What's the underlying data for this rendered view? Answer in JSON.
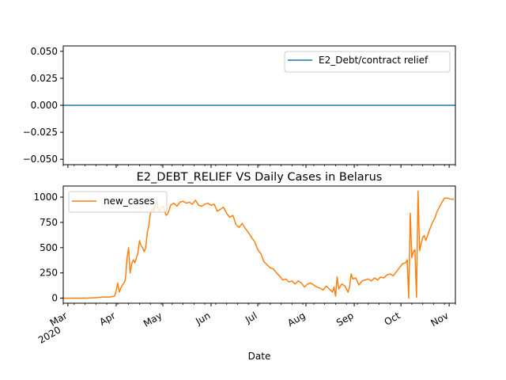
{
  "chart_data": [
    {
      "type": "line",
      "title": "",
      "xlabel": "",
      "ylabel": "",
      "ylim": [
        -0.055,
        0.055
      ],
      "yticks": [
        "0.050",
        "0.025",
        "0.000",
        "−0.025",
        "−0.050"
      ],
      "ytick_values": [
        0.05,
        0.025,
        0.0,
        -0.025,
        -0.05
      ],
      "grid": false,
      "legend_position": "upper right",
      "series": [
        {
          "name": "E2_Debt/contract relief",
          "color": "#1f77b4",
          "x": [
            "2020-02-27",
            "2020-11-05"
          ],
          "y": [
            0,
            0
          ]
        }
      ]
    },
    {
      "type": "line",
      "title": "E2_DEBT_RELIEF VS Daily Cases in Belarus",
      "xlabel": "Date",
      "ylabel": "",
      "ylim": [
        -50,
        1110
      ],
      "yticks": [
        "1000",
        "750",
        "500",
        "250",
        "0"
      ],
      "ytick_values": [
        1000,
        750,
        500,
        250,
        0
      ],
      "xlim": [
        "2020-02-27",
        "2020-11-05"
      ],
      "xticks": [
        {
          "date": "2020-03-01",
          "label": "Mar",
          "sublabel": "2020"
        },
        {
          "date": "2020-04-01",
          "label": "Apr",
          "sublabel": ""
        },
        {
          "date": "2020-05-01",
          "label": "May",
          "sublabel": ""
        },
        {
          "date": "2020-06-01",
          "label": "Jun",
          "sublabel": ""
        },
        {
          "date": "2020-07-01",
          "label": "Jul",
          "sublabel": ""
        },
        {
          "date": "2020-08-01",
          "label": "Aug",
          "sublabel": ""
        },
        {
          "date": "2020-09-01",
          "label": "Sep",
          "sublabel": ""
        },
        {
          "date": "2020-10-01",
          "label": "Oct",
          "sublabel": ""
        },
        {
          "date": "2020-11-01",
          "label": "Nov",
          "sublabel": ""
        }
      ],
      "grid": false,
      "legend_position": "upper left",
      "series": [
        {
          "name": "new_cases",
          "color": "#ff7f0e",
          "x": [
            "2020-02-27",
            "2020-03-05",
            "2020-03-10",
            "2020-03-15",
            "2020-03-19",
            "2020-03-22",
            "2020-03-25",
            "2020-03-27",
            "2020-03-29",
            "2020-03-31",
            "2020-04-01",
            "2020-04-02",
            "2020-04-03",
            "2020-04-04",
            "2020-04-05",
            "2020-04-06",
            "2020-04-07",
            "2020-04-08",
            "2020-04-09",
            "2020-04-10",
            "2020-04-11",
            "2020-04-12",
            "2020-04-13",
            "2020-04-14",
            "2020-04-15",
            "2020-04-16",
            "2020-04-17",
            "2020-04-18",
            "2020-04-19",
            "2020-04-20",
            "2020-04-21",
            "2020-04-22",
            "2020-04-23",
            "2020-04-24",
            "2020-04-25",
            "2020-04-26",
            "2020-04-27",
            "2020-04-28",
            "2020-04-29",
            "2020-04-30",
            "2020-05-01",
            "2020-05-02",
            "2020-05-03",
            "2020-05-04",
            "2020-05-05",
            "2020-05-06",
            "2020-05-08",
            "2020-05-10",
            "2020-05-12",
            "2020-05-14",
            "2020-05-16",
            "2020-05-18",
            "2020-05-20",
            "2020-05-22",
            "2020-05-24",
            "2020-05-26",
            "2020-05-28",
            "2020-05-30",
            "2020-06-01",
            "2020-06-03",
            "2020-06-05",
            "2020-06-07",
            "2020-06-09",
            "2020-06-11",
            "2020-06-13",
            "2020-06-15",
            "2020-06-17",
            "2020-06-19",
            "2020-06-21",
            "2020-06-23",
            "2020-06-25",
            "2020-06-27",
            "2020-06-29",
            "2020-07-01",
            "2020-07-03",
            "2020-07-05",
            "2020-07-07",
            "2020-07-09",
            "2020-07-11",
            "2020-07-13",
            "2020-07-15",
            "2020-07-17",
            "2020-07-19",
            "2020-07-21",
            "2020-07-23",
            "2020-07-25",
            "2020-07-27",
            "2020-07-29",
            "2020-07-31",
            "2020-08-02",
            "2020-08-04",
            "2020-08-06",
            "2020-08-08",
            "2020-08-10",
            "2020-08-12",
            "2020-08-14",
            "2020-08-16",
            "2020-08-18",
            "2020-08-19",
            "2020-08-20",
            "2020-08-21",
            "2020-08-22",
            "2020-08-24",
            "2020-08-26",
            "2020-08-28",
            "2020-08-29",
            "2020-08-30",
            "2020-08-31",
            "2020-09-02",
            "2020-09-04",
            "2020-09-06",
            "2020-09-08",
            "2020-09-10",
            "2020-09-12",
            "2020-09-14",
            "2020-09-16",
            "2020-09-18",
            "2020-09-20",
            "2020-09-22",
            "2020-09-24",
            "2020-09-26",
            "2020-09-28",
            "2020-09-30",
            "2020-10-02",
            "2020-10-04",
            "2020-10-05",
            "2020-10-06",
            "2020-10-07",
            "2020-10-08",
            "2020-10-09",
            "2020-10-10",
            "2020-10-11",
            "2020-10-12",
            "2020-10-13",
            "2020-10-14",
            "2020-10-15",
            "2020-10-16",
            "2020-10-17",
            "2020-10-19",
            "2020-10-21",
            "2020-10-23",
            "2020-10-24",
            "2020-10-25",
            "2020-10-27",
            "2020-10-29",
            "2020-10-31",
            "2020-11-02",
            "2020-11-04"
          ],
          "y": [
            0,
            0,
            0,
            2,
            5,
            10,
            12,
            10,
            15,
            20,
            70,
            150,
            60,
            100,
            130,
            150,
            190,
            400,
            500,
            250,
            340,
            380,
            350,
            400,
            450,
            570,
            520,
            500,
            460,
            500,
            650,
            720,
            840,
            880,
            860,
            900,
            970,
            880,
            860,
            900,
            910,
            880,
            820,
            830,
            870,
            920,
            940,
            910,
            950,
            960,
            940,
            950,
            930,
            970,
            920,
            910,
            930,
            940,
            920,
            930,
            860,
            880,
            900,
            840,
            800,
            820,
            730,
            700,
            740,
            690,
            650,
            600,
            560,
            480,
            440,
            360,
            330,
            300,
            290,
            250,
            220,
            180,
            190,
            160,
            170,
            140,
            170,
            150,
            110,
            140,
            150,
            130,
            110,
            100,
            80,
            120,
            90,
            60,
            110,
            20,
            210,
            90,
            140,
            120,
            60,
            110,
            240,
            190,
            200,
            130,
            170,
            180,
            190,
            170,
            200,
            180,
            210,
            200,
            230,
            240,
            220,
            260,
            300,
            340,
            350,
            380,
            0,
            840,
            400,
            460,
            480,
            10,
            1060,
            470,
            540,
            600,
            620,
            570,
            660,
            740,
            800,
            850,
            880,
            940,
            990,
            990,
            980,
            980
          ]
        }
      ]
    }
  ]
}
